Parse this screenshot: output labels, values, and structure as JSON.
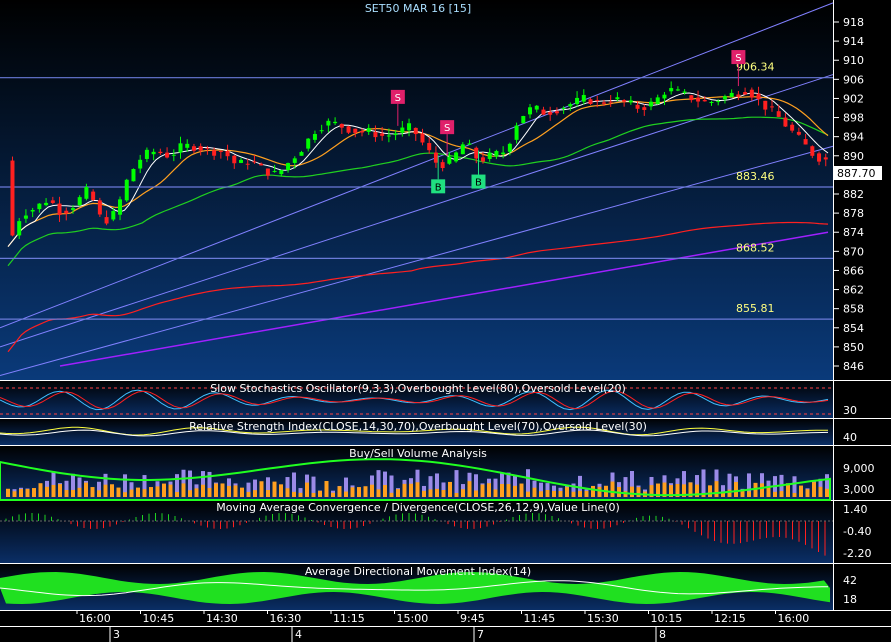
{
  "title": "SET50 MAR 16   [15]",
  "colors": {
    "background_top": "#000000",
    "background_bottom": "#0a3a7a",
    "axis_text": "#ffffff",
    "title_text": "#aadfff",
    "bull_candle": "#00ff00",
    "bear_candle": "#ff2020",
    "sell_marker": "#e0206a",
    "buy_marker": "#20e080",
    "level_line": "#6a7ad8",
    "level_text": "#ffff80",
    "ma_red": "#ff2020",
    "ma_green": "#20d020",
    "ma_orange": "#ffa020",
    "ma_purple": "#a020ff",
    "channel": "#8080ff",
    "bollinger": "#ffffff"
  },
  "chart_data": [
    {
      "type": "candlestick",
      "title": "SET50 MAR 16   [15]",
      "y_ticks": [
        846,
        850,
        854,
        858,
        862,
        866,
        870,
        874,
        878,
        882,
        886,
        890,
        894,
        898,
        902,
        906,
        910,
        914,
        918
      ],
      "ylim": [
        843.5,
        922
      ],
      "last_price": "887.70",
      "levels": [
        {
          "value": 906.34,
          "label": "906.34"
        },
        {
          "value": 883.46,
          "label": "883.46"
        },
        {
          "value": 868.52,
          "label": "868.52"
        },
        {
          "value": 855.81,
          "label": "855.81"
        }
      ],
      "close_path": [
        [
          0,
          871
        ],
        [
          3,
          878
        ],
        [
          6,
          879
        ],
        [
          9,
          881
        ],
        [
          12,
          878
        ],
        [
          15,
          880
        ],
        [
          18,
          883
        ],
        [
          21,
          876
        ],
        [
          24,
          878
        ],
        [
          27,
          886
        ],
        [
          30,
          890
        ],
        [
          33,
          891
        ],
        [
          36,
          890
        ],
        [
          39,
          892
        ],
        [
          42,
          892
        ],
        [
          45,
          891
        ],
        [
          48,
          891
        ],
        [
          51,
          888
        ],
        [
          54,
          889
        ],
        [
          57,
          887
        ],
        [
          60,
          886
        ],
        [
          63,
          889
        ],
        [
          66,
          892
        ],
        [
          69,
          896
        ],
        [
          72,
          897
        ],
        [
          75,
          896
        ],
        [
          78,
          895
        ],
        [
          81,
          895
        ],
        [
          84,
          894
        ],
        [
          87,
          895
        ],
        [
          90,
          896
        ],
        [
          93,
          892
        ],
        [
          96,
          888
        ],
        [
          99,
          889
        ],
        [
          102,
          893
        ],
        [
          105,
          889
        ],
        [
          108,
          890
        ],
        [
          111,
          891
        ],
        [
          114,
          898
        ],
        [
          117,
          900
        ],
        [
          120,
          899
        ],
        [
          123,
          900
        ],
        [
          126,
          901
        ],
        [
          129,
          902
        ],
        [
          132,
          901
        ],
        [
          135,
          902
        ],
        [
          138,
          901
        ],
        [
          141,
          900
        ],
        [
          144,
          901
        ],
        [
          147,
          904
        ],
        [
          150,
          903
        ],
        [
          153,
          902
        ],
        [
          156,
          901
        ],
        [
          159,
          902
        ],
        [
          162,
          903
        ],
        [
          165,
          904
        ],
        [
          168,
          901
        ],
        [
          171,
          899
        ],
        [
          174,
          896
        ],
        [
          177,
          893
        ],
        [
          180,
          890
        ],
        [
          183,
          889
        ]
      ],
      "sell_signals": [
        {
          "label": "S",
          "at": 0.475
        },
        {
          "label": "S",
          "at": 0.535
        },
        {
          "label": "S",
          "at": 0.89
        }
      ],
      "buy_signals": [
        {
          "label": "B",
          "at": 0.525
        },
        {
          "label": "B",
          "at": 0.575
        }
      ]
    },
    {
      "type": "line",
      "title": "Slow Stochastics Oscillator(9,3,3),Overbought Level(80),Oversold Level(20)",
      "y_ticks": [
        30
      ]
    },
    {
      "type": "line",
      "title": "Relative Strength Index(CLOSE,14,30,70),Overbought Level(70),Oversold Level(30)",
      "y_ticks": [
        40
      ]
    },
    {
      "type": "bar",
      "title": "Buy/Sell Volume Analysis",
      "y_ticks": [
        "9,000",
        "3,000"
      ]
    },
    {
      "type": "bar",
      "title": "Moving Average Convergence / Divergence(CLOSE,26,12,9),Value Line(0)",
      "y_ticks": [
        "1.40",
        "-0.40",
        "-2.20"
      ]
    },
    {
      "type": "area",
      "title": "Average Directional Movement Index(14)",
      "y_ticks": [
        42,
        18
      ]
    }
  ],
  "x_axis": {
    "time_labels": [
      "16:00",
      "10:45",
      "14:30",
      "16:30",
      "11:15",
      "15:00",
      "9:45",
      "11:45",
      "15:30",
      "10:15",
      "12:15",
      "16:00"
    ],
    "day_labels": [
      "3",
      "4",
      "7",
      "8"
    ]
  }
}
